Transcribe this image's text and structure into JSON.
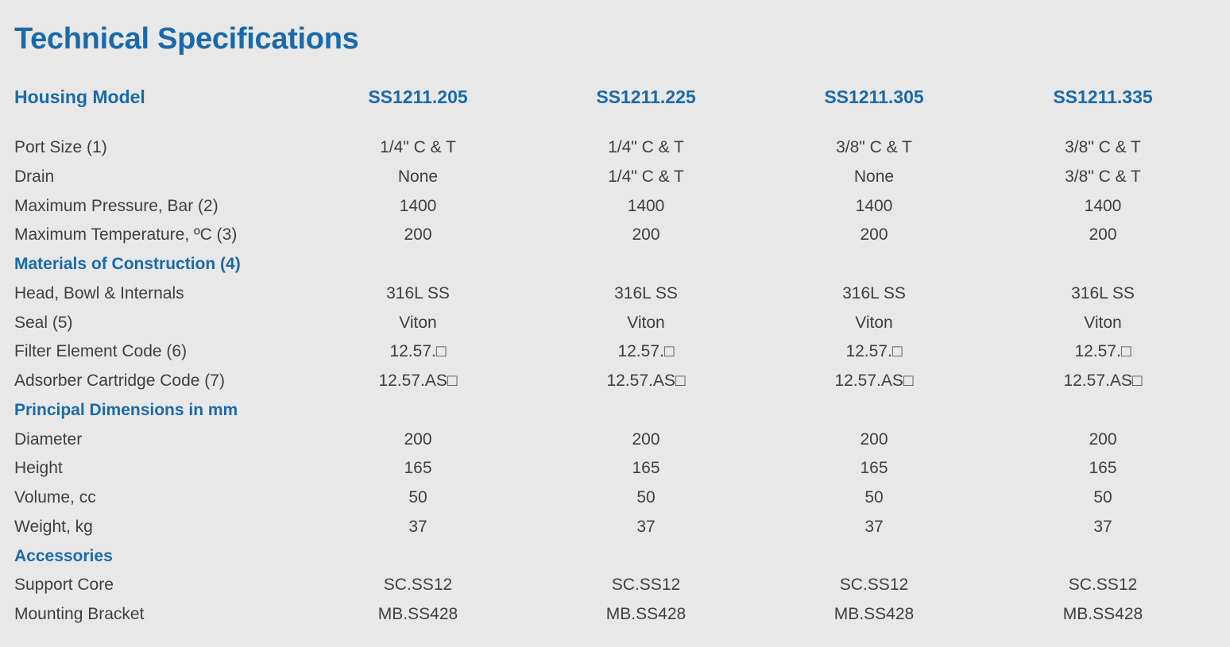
{
  "title": "Technical Specifications",
  "header": {
    "label": "Housing Model",
    "models": [
      "SS1211.205",
      "SS1211.225",
      "SS1211.305",
      "SS1211.335"
    ]
  },
  "rows": [
    {
      "type": "data",
      "label": "Port Size (1)",
      "values": [
        "1/4\" C & T",
        "1/4\" C & T",
        "3/8\" C & T",
        "3/8\" C & T"
      ]
    },
    {
      "type": "data",
      "label": "Drain",
      "values": [
        "None",
        "1/4\" C & T",
        "None",
        "3/8\" C & T"
      ]
    },
    {
      "type": "data",
      "label": "Maximum Pressure, Bar (2)",
      "values": [
        "1400",
        "1400",
        "1400",
        "1400"
      ]
    },
    {
      "type": "data",
      "label": "Maximum Temperature, ºC (3)",
      "values": [
        "200",
        "200",
        "200",
        "200"
      ]
    },
    {
      "type": "section",
      "label": "Materials of Construction (4)"
    },
    {
      "type": "data",
      "label": "Head, Bowl & Internals",
      "values": [
        "316L SS",
        "316L SS",
        "316L SS",
        "316L SS"
      ]
    },
    {
      "type": "data",
      "label": "Seal (5)",
      "values": [
        "Viton",
        "Viton",
        "Viton",
        "Viton"
      ]
    },
    {
      "type": "data",
      "label": "Filter Element Code (6)",
      "values": [
        "12.57.□",
        "12.57.□",
        "12.57.□",
        "12.57.□"
      ]
    },
    {
      "type": "data",
      "label": "Adsorber Cartridge Code (7)",
      "values": [
        "12.57.AS□",
        "12.57.AS□",
        "12.57.AS□",
        "12.57.AS□"
      ]
    },
    {
      "type": "section",
      "label": "Principal Dimensions in mm"
    },
    {
      "type": "data",
      "label": "Diameter",
      "values": [
        "200",
        "200",
        "200",
        "200"
      ]
    },
    {
      "type": "data",
      "label": "Height",
      "values": [
        "165",
        "165",
        "165",
        "165"
      ]
    },
    {
      "type": "data",
      "label": "Volume, cc",
      "values": [
        "50",
        "50",
        "50",
        "50"
      ]
    },
    {
      "type": "data",
      "label": "Weight, kg",
      "values": [
        "37",
        "37",
        "37",
        "37"
      ]
    },
    {
      "type": "section",
      "label": "Accessories"
    },
    {
      "type": "data",
      "label": "Support Core",
      "values": [
        "SC.SS12",
        "SC.SS12",
        "SC.SS12",
        "SC.SS12"
      ]
    },
    {
      "type": "data",
      "label": "Mounting Bracket",
      "values": [
        "MB.SS428",
        "MB.SS428",
        "MB.SS428",
        "MB.SS428"
      ]
    }
  ],
  "colors": {
    "background": "#e8e8e8",
    "accent": "#1a6aaa",
    "text": "#3f3f3f"
  }
}
